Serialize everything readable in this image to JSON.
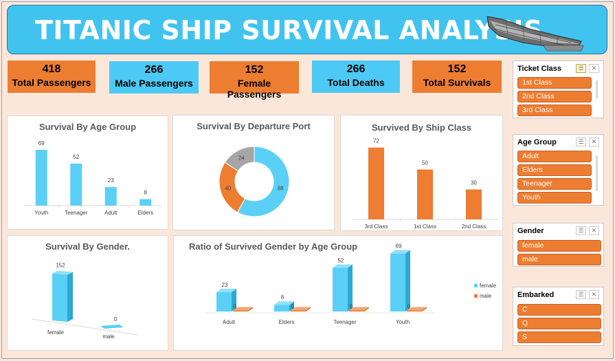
{
  "header": {
    "title": "TITANIC SHIP SURVIVAL ANALYSIS"
  },
  "kpis": [
    {
      "value": "418",
      "label": "Total Passengers",
      "color": "#ed7d31"
    },
    {
      "value": "266",
      "label": "Male Passengers",
      "color": "#4cc9f4"
    },
    {
      "value": "152",
      "label": "Female Passengers",
      "color": "#ed7d31"
    },
    {
      "value": "266",
      "label": "Total Deaths",
      "color": "#4cc9f4"
    },
    {
      "value": "152",
      "label": "Total Survivals",
      "color": "#ed7d31"
    }
  ],
  "colors": {
    "blue": "#5bd0f7",
    "orange": "#ed7d31",
    "gray": "#a6a6a6",
    "title_bg": "#40c4ef"
  },
  "chart_data": [
    {
      "id": "age",
      "type": "bar",
      "title": "Survival By Age Group",
      "categories": [
        "Youth",
        "Teenager",
        "Adult",
        "Elders"
      ],
      "values": [
        69,
        52,
        23,
        8
      ],
      "ylim": [
        0,
        80
      ],
      "grid": false,
      "legend": "none"
    },
    {
      "id": "port",
      "type": "pie",
      "style": "donut",
      "title": "Survival By Departure Port",
      "values": [
        88,
        40,
        24
      ],
      "colors": [
        "#5bd0f7",
        "#ed7d31",
        "#a6a6a6"
      ],
      "legend": "none"
    },
    {
      "id": "class",
      "type": "bar",
      "title": "Survived By Ship Class",
      "categories": [
        "3rd Class",
        "1st Class",
        "2nd Class"
      ],
      "values": [
        72,
        50,
        30
      ],
      "ylim": [
        0,
        80
      ],
      "grid": false,
      "legend": "none"
    },
    {
      "id": "gender",
      "type": "bar",
      "style": "3d",
      "title": "Survival By Gender.",
      "categories": [
        "female",
        "male"
      ],
      "values": [
        152,
        0
      ],
      "legend": "none"
    },
    {
      "id": "ratio",
      "type": "bar",
      "style": "3d",
      "title": "Ratio of Survived Gender by Age Group",
      "categories": [
        "Adult",
        "Elders",
        "Teenager",
        "Youth"
      ],
      "series": [
        {
          "name": "female",
          "values": [
            23,
            8,
            52,
            69
          ]
        },
        {
          "name": "male",
          "values": [
            0,
            0,
            0,
            0
          ]
        }
      ],
      "legend": "right"
    }
  ],
  "slicers": [
    {
      "title": "Ticket Class",
      "items": [
        "1st Class",
        "2nd Class",
        "3rd Class"
      ],
      "filtered": true
    },
    {
      "title": "Age Group",
      "items": [
        "Adult",
        "Elders",
        "Teenager",
        "Youth"
      ],
      "filtered": false
    },
    {
      "title": "Gender",
      "items": [
        "female",
        "male"
      ],
      "filtered": false
    },
    {
      "title": "Embarked",
      "items": [
        "C",
        "Q",
        "S"
      ],
      "filtered": false
    }
  ]
}
